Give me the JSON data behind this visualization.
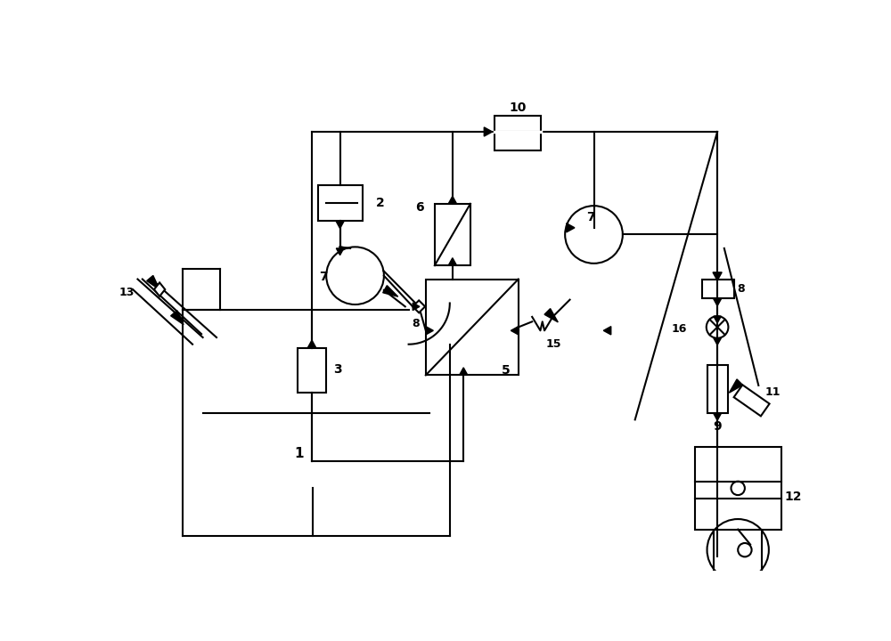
{
  "background": "#ffffff",
  "line_color": "#000000",
  "lw": 1.5,
  "figsize": [
    10.0,
    7.2
  ],
  "dpi": 100
}
